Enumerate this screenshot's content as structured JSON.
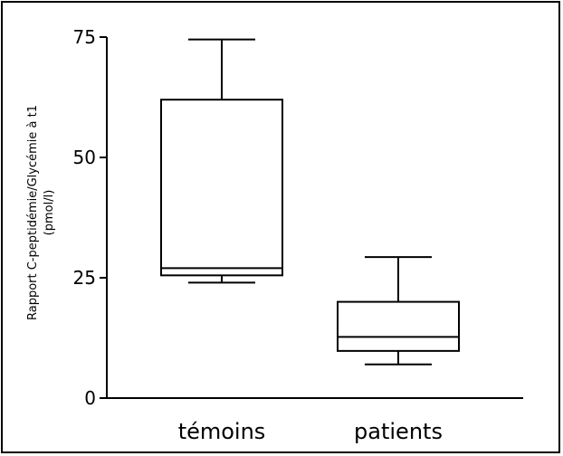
{
  "chart_data": {
    "type": "box",
    "title": "",
    "ylabel_lines": [
      "Rapport C-peptidémie/Glycémie à t1",
      "(pmol/l)"
    ],
    "xlabel": "",
    "ylim": [
      0,
      75
    ],
    "yticks": [
      0,
      25,
      50,
      75
    ],
    "categories": [
      "témoins",
      "patients"
    ],
    "boxes": [
      {
        "category": "témoins",
        "min": 24,
        "q1": 25.5,
        "median": 27,
        "q3": 62,
        "max": 74.5
      },
      {
        "category": "patients",
        "min": 7,
        "q1": 9.8,
        "median": 12.7,
        "q3": 20,
        "max": 29.3
      }
    ],
    "grid": false,
    "legend": "none"
  }
}
